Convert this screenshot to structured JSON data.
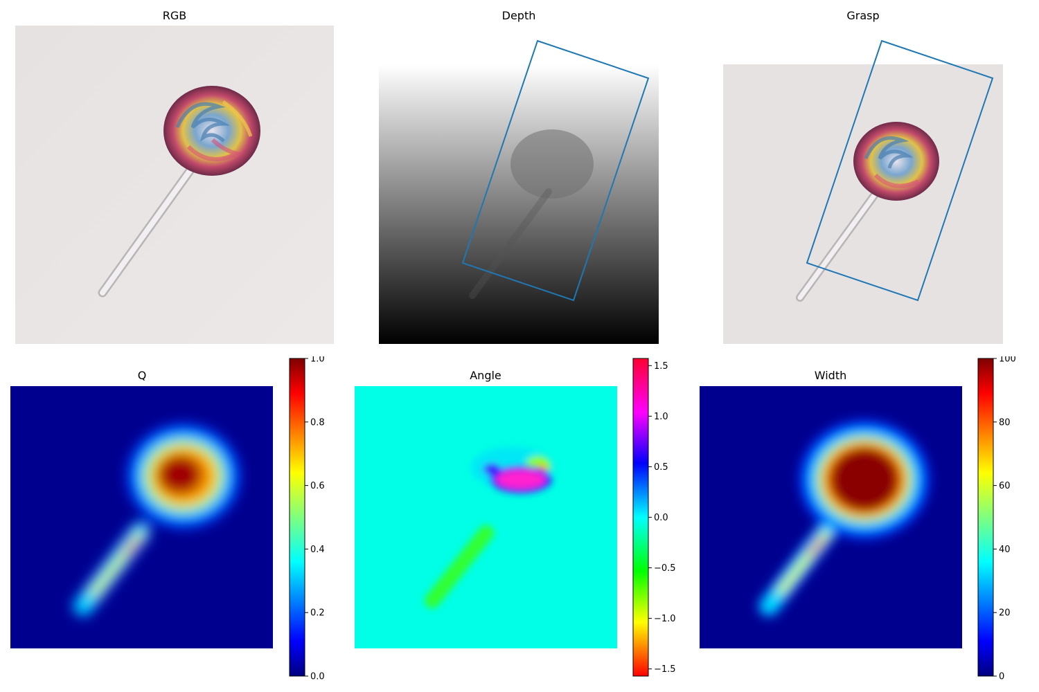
{
  "panels": {
    "rgb": {
      "title": "RGB"
    },
    "depth": {
      "title": "Depth"
    },
    "grasp": {
      "title": "Grasp"
    },
    "q": {
      "title": "Q"
    },
    "angle": {
      "title": "Angle"
    },
    "width": {
      "title": "Width"
    }
  },
  "colorbars": {
    "q": {
      "colormap": "jet",
      "ticks": [
        "0.0",
        "0.2",
        "0.4",
        "0.6",
        "0.8",
        "1.0"
      ],
      "range": [
        0.0,
        1.0
      ]
    },
    "angle": {
      "colormap": "hsv",
      "ticks": [
        "−1.5",
        "−1.0",
        "−0.5",
        "0.0",
        "0.5",
        "1.0",
        "1.5"
      ],
      "range": [
        -1.5708,
        1.5708
      ]
    },
    "width": {
      "colormap": "jet",
      "ticks": [
        "0",
        "20",
        "40",
        "60",
        "80",
        "100"
      ],
      "range": [
        0,
        100
      ]
    }
  },
  "colors": {
    "grasp_box": "#1f77b4",
    "background_paper": "#ebe6e6",
    "jet_low": "#00007f",
    "jet_high": "#7f0000",
    "angle_background": "#00ffe6"
  }
}
